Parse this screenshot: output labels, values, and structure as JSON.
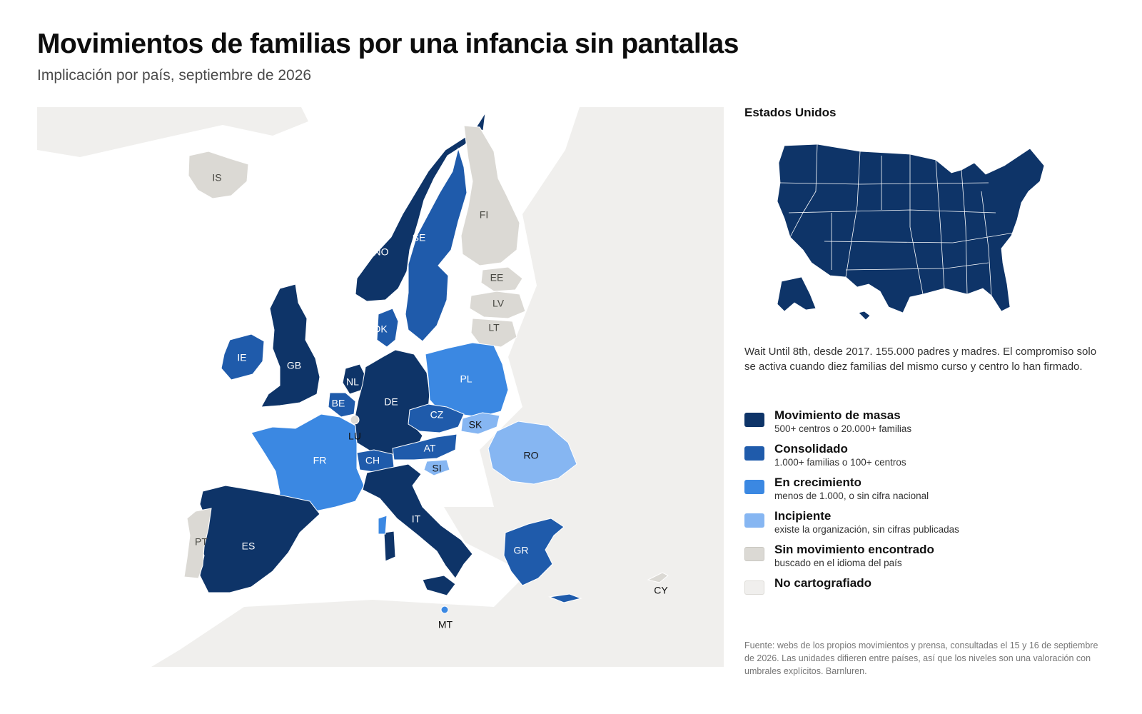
{
  "header": {
    "title": "Movimientos de familias por una infancia sin pantallas",
    "subtitle": "Implicación por país, septiembre de 2026"
  },
  "colors": {
    "masas": "#0e3468",
    "consolidado": "#1f5bab",
    "crecimiento": "#3b88e2",
    "incipiente": "#86b6f2",
    "sin_movimiento": "#dbd9d4",
    "no_cartografiado": "#f0efed",
    "sea": "#ffffff"
  },
  "map": {
    "countries": [
      {
        "code": "IS",
        "level": "sin_movimiento"
      },
      {
        "code": "NO",
        "level": "masas"
      },
      {
        "code": "SE",
        "level": "consolidado"
      },
      {
        "code": "FI",
        "level": "sin_movimiento"
      },
      {
        "code": "EE",
        "level": "sin_movimiento"
      },
      {
        "code": "LV",
        "level": "sin_movimiento"
      },
      {
        "code": "LT",
        "level": "sin_movimiento"
      },
      {
        "code": "DK",
        "level": "consolidado"
      },
      {
        "code": "IE",
        "level": "consolidado"
      },
      {
        "code": "GB",
        "level": "masas"
      },
      {
        "code": "NL",
        "level": "masas"
      },
      {
        "code": "BE",
        "level": "consolidado"
      },
      {
        "code": "LU",
        "level": "sin_movimiento"
      },
      {
        "code": "DE",
        "level": "masas"
      },
      {
        "code": "PL",
        "level": "crecimiento"
      },
      {
        "code": "CZ",
        "level": "consolidado"
      },
      {
        "code": "SK",
        "level": "incipiente"
      },
      {
        "code": "AT",
        "level": "consolidado"
      },
      {
        "code": "CH",
        "level": "consolidado"
      },
      {
        "code": "SI",
        "level": "incipiente"
      },
      {
        "code": "RO",
        "level": "incipiente"
      },
      {
        "code": "FR",
        "level": "crecimiento"
      },
      {
        "code": "IT",
        "level": "masas"
      },
      {
        "code": "ES",
        "level": "masas"
      },
      {
        "code": "PT",
        "level": "sin_movimiento"
      },
      {
        "code": "GR",
        "level": "consolidado"
      },
      {
        "code": "MT",
        "level": "crecimiento"
      },
      {
        "code": "CY",
        "level": "sin_movimiento"
      }
    ]
  },
  "us_panel": {
    "title": "Estados Unidos",
    "level": "masas",
    "description": "Wait Until 8th, desde 2017. 155.000 padres y madres. El compromiso solo se activa cuando diez familias del mismo curso y centro lo han firmado."
  },
  "legend": [
    {
      "key": "masas",
      "name": "Movimiento de masas",
      "desc": "500+ centros o 20.000+ familias"
    },
    {
      "key": "consolidado",
      "name": "Consolidado",
      "desc": "1.000+ familias o 100+ centros"
    },
    {
      "key": "crecimiento",
      "name": "En crecimiento",
      "desc": "menos de 1.000, o sin cifra nacional"
    },
    {
      "key": "incipiente",
      "name": "Incipiente",
      "desc": "existe la organización, sin cifras publicadas"
    },
    {
      "key": "sin_movimiento",
      "name": "Sin movimiento encontrado",
      "desc": "buscado en el idioma del país"
    },
    {
      "key": "no_cartografiado",
      "name": "No cartografiado",
      "desc": ""
    }
  ],
  "source": "Fuente: webs de los propios movimientos y prensa, consultadas el 15 y 16 de septiembre de 2026. Las unidades difieren entre países, así que los niveles son una valoración con umbrales explícitos. Barnluren."
}
